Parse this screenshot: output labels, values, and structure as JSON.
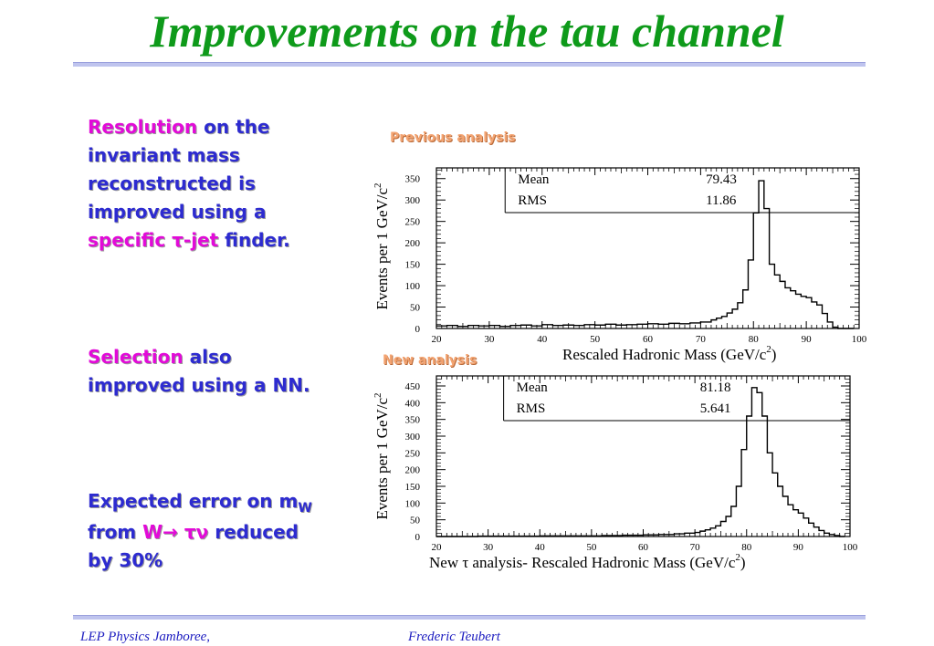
{
  "slide": {
    "title": "Improvements on the tau channel"
  },
  "bullets": {
    "b1_hl": "Resolution",
    "b1_text": " on the invariant mass reconstructed is improved using a ",
    "b1_hl2": "specific τ-jet",
    "b1_tail": " finder.",
    "b2_hl": "Selection",
    "b2_text": " also improved using a NN.",
    "b3_text1": "Expected error on m",
    "b3_sub": "W",
    "b3_text2": " from ",
    "b3_hl": "W→ τν",
    "b3_text3": " reduced by 30%"
  },
  "labels": {
    "previous": "Previous analysis",
    "new": "New analysis"
  },
  "footer": {
    "left": "LEP Physics Jamboree,",
    "center": "Frederic Teubert"
  },
  "chart_data": [
    {
      "type": "line",
      "ylabel": "Events per 1 GeV/c",
      "ylabel_sup": "2",
      "xlabel": "Rescaled Hadronic Mass (GeV/c",
      "xlabel_sup": "2",
      "xlabel_end": ")",
      "xlim": [
        20,
        100
      ],
      "ylim": [
        0,
        375
      ],
      "xticks": [
        20,
        30,
        40,
        50,
        60,
        70,
        80,
        90,
        100
      ],
      "yticks": [
        0,
        50,
        100,
        150,
        200,
        250,
        300,
        350
      ],
      "stats": [
        {
          "name": "Mean",
          "value": "79.43"
        },
        {
          "name": "RMS",
          "value": "11.86"
        }
      ],
      "x": [
        20,
        22,
        24,
        26,
        28,
        30,
        32,
        34,
        36,
        38,
        40,
        42,
        44,
        46,
        48,
        50,
        52,
        54,
        56,
        58,
        60,
        62,
        64,
        66,
        68,
        70,
        72,
        73,
        74,
        75,
        76,
        77,
        78,
        79,
        80,
        81,
        82,
        83,
        84,
        85,
        86,
        87,
        88,
        89,
        90,
        91,
        92,
        93,
        94,
        95,
        96,
        98
      ],
      "values": [
        6,
        7,
        5,
        7,
        6,
        7,
        5,
        7,
        8,
        6,
        9,
        7,
        8,
        7,
        9,
        8,
        10,
        8,
        9,
        10,
        11,
        10,
        12,
        11,
        13,
        15,
        20,
        24,
        28,
        36,
        45,
        60,
        90,
        160,
        270,
        345,
        280,
        150,
        125,
        110,
        95,
        88,
        80,
        75,
        72,
        62,
        55,
        35,
        15,
        3,
        0,
        0
      ]
    },
    {
      "type": "line",
      "ylabel": "Events per 1 GeV/c",
      "ylabel_sup": "2",
      "xlabel": "New τ analysis- Rescaled Hadronic Mass (GeV/c",
      "xlabel_sup": "2",
      "xlabel_end": ")",
      "xlim": [
        20,
        100
      ],
      "ylim": [
        0,
        480
      ],
      "xticks": [
        20,
        30,
        40,
        50,
        60,
        70,
        80,
        90,
        100
      ],
      "yticks": [
        0,
        50,
        100,
        150,
        200,
        250,
        300,
        350,
        400,
        450
      ],
      "stats": [
        {
          "name": "Mean",
          "value": "81.18"
        },
        {
          "name": "RMS",
          "value": "5.641"
        }
      ],
      "x": [
        20,
        24,
        28,
        32,
        36,
        40,
        44,
        48,
        52,
        56,
        60,
        63,
        66,
        68,
        70,
        71,
        72,
        73,
        74,
        75,
        76,
        77,
        78,
        79,
        80,
        81,
        82,
        83,
        84,
        85,
        86,
        87,
        88,
        89,
        90,
        91,
        92,
        93,
        94,
        95,
        96,
        97,
        98
      ],
      "values": [
        0,
        0,
        1,
        1,
        1,
        2,
        2,
        2,
        3,
        4,
        5,
        6,
        8,
        10,
        12,
        16,
        20,
        25,
        32,
        45,
        60,
        90,
        150,
        260,
        360,
        445,
        430,
        360,
        250,
        190,
        150,
        120,
        95,
        80,
        70,
        55,
        40,
        28,
        18,
        10,
        6,
        3,
        0
      ]
    }
  ]
}
